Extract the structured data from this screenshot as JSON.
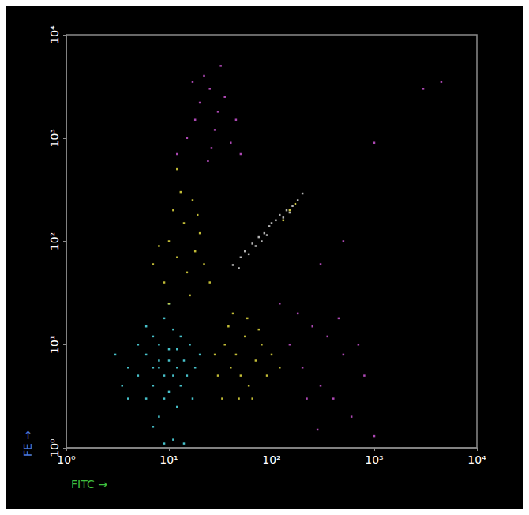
{
  "chart_data": {
    "type": "scatter",
    "x_label": "FITC →",
    "y_label": "FE →",
    "log": true,
    "grid": false,
    "marker": "square",
    "xlim": [
      1,
      10000
    ],
    "ylim": [
      1,
      10000
    ],
    "xticks": [
      {
        "value": 1,
        "label": "10⁰"
      },
      {
        "value": 10,
        "label": "10¹"
      },
      {
        "value": 100,
        "label": "10²"
      },
      {
        "value": 1000,
        "label": "10³"
      },
      {
        "value": 10000,
        "label": "10⁴"
      }
    ],
    "yticks": [
      {
        "value": 1,
        "label": "10⁰"
      },
      {
        "value": 10,
        "label": "10¹"
      },
      {
        "value": 100,
        "label": "10²"
      },
      {
        "value": 1000,
        "label": "10³"
      },
      {
        "value": 10000,
        "label": "10⁴"
      }
    ],
    "series": [
      {
        "color": "#4fd6e0",
        "values": [
          [
            8,
            6
          ],
          [
            9,
            5
          ],
          [
            10,
            7
          ],
          [
            7,
            4
          ],
          [
            11,
            5
          ],
          [
            6,
            8
          ],
          [
            12,
            9
          ],
          [
            9,
            3
          ],
          [
            8,
            10
          ],
          [
            5,
            5
          ],
          [
            13,
            4
          ],
          [
            10,
            3.5
          ],
          [
            7,
            12
          ],
          [
            14,
            7
          ],
          [
            11,
            14
          ],
          [
            4,
            6
          ],
          [
            6,
            3
          ],
          [
            15,
            5
          ],
          [
            9,
            18
          ],
          [
            12,
            2.5
          ],
          [
            5,
            10
          ],
          [
            16,
            10
          ],
          [
            8,
            2
          ],
          [
            3.5,
            4
          ],
          [
            10,
            25
          ],
          [
            18,
            6
          ],
          [
            7,
            1.6
          ],
          [
            6,
            15
          ],
          [
            13,
            12
          ],
          [
            4,
            3
          ],
          [
            20,
            8
          ],
          [
            11,
            1.2
          ],
          [
            9,
            1.1
          ],
          [
            14,
            1.1
          ],
          [
            3,
            8
          ],
          [
            17,
            3
          ],
          [
            8,
            7
          ],
          [
            10,
            9
          ],
          [
            7,
            6
          ],
          [
            12,
            6
          ]
        ]
      },
      {
        "color": "#d6cf3c",
        "values": [
          [
            40,
            6
          ],
          [
            50,
            5
          ],
          [
            45,
            8
          ],
          [
            60,
            4
          ],
          [
            35,
            10
          ],
          [
            55,
            12
          ],
          [
            70,
            7
          ],
          [
            30,
            5
          ],
          [
            48,
            3
          ],
          [
            80,
            10
          ],
          [
            38,
            15
          ],
          [
            65,
            3
          ],
          [
            90,
            5
          ],
          [
            42,
            20
          ],
          [
            28,
            8
          ],
          [
            100,
            8
          ],
          [
            58,
            18
          ],
          [
            75,
            14
          ],
          [
            33,
            3
          ],
          [
            120,
            6
          ],
          [
            12,
            70
          ],
          [
            15,
            50
          ],
          [
            10,
            100
          ],
          [
            14,
            150
          ],
          [
            18,
            80
          ],
          [
            9,
            40
          ],
          [
            20,
            120
          ],
          [
            11,
            200
          ],
          [
            16,
            30
          ],
          [
            13,
            300
          ],
          [
            8,
            90
          ],
          [
            22,
            60
          ],
          [
            17,
            250
          ],
          [
            12,
            500
          ],
          [
            25,
            40
          ],
          [
            10,
            25
          ],
          [
            19,
            180
          ],
          [
            7,
            60
          ]
        ]
      },
      {
        "color": "#c8c8c8",
        "values": [
          [
            42,
            59
          ],
          [
            50,
            70
          ],
          [
            55,
            80
          ],
          [
            65,
            95
          ],
          [
            75,
            110
          ],
          [
            85,
            120
          ],
          [
            95,
            140
          ],
          [
            110,
            160
          ],
          [
            120,
            180
          ],
          [
            140,
            200
          ],
          [
            160,
            220
          ],
          [
            180,
            250
          ],
          [
            200,
            290
          ],
          [
            60,
            75
          ],
          [
            70,
            90
          ],
          [
            90,
            115
          ],
          [
            100,
            150
          ],
          [
            130,
            170
          ],
          [
            150,
            190
          ],
          [
            48,
            55
          ],
          [
            80,
            100
          ]
        ]
      },
      {
        "color": "#e0d84a",
        "values": [
          [
            150,
            200
          ],
          [
            170,
            230
          ],
          [
            130,
            160
          ]
        ]
      },
      {
        "color": "#c050c8",
        "values": [
          [
            20,
            2200
          ],
          [
            25,
            3000
          ],
          [
            18,
            1500
          ],
          [
            30,
            1800
          ],
          [
            15,
            1000
          ],
          [
            22,
            4000
          ],
          [
            35,
            2500
          ],
          [
            28,
            1200
          ],
          [
            40,
            900
          ],
          [
            12,
            700
          ],
          [
            24,
            600
          ],
          [
            45,
            1500
          ],
          [
            17,
            3500
          ],
          [
            32,
            5000
          ],
          [
            50,
            700
          ],
          [
            26,
            800
          ],
          [
            150,
            10
          ],
          [
            200,
            6
          ],
          [
            300,
            4
          ],
          [
            250,
            15
          ],
          [
            400,
            3
          ],
          [
            500,
            8
          ],
          [
            180,
            20
          ],
          [
            600,
            2
          ],
          [
            350,
            12
          ],
          [
            800,
            5
          ],
          [
            1000,
            1.3
          ],
          [
            120,
            25
          ],
          [
            220,
            3
          ],
          [
            450,
            18
          ],
          [
            700,
            10
          ],
          [
            280,
            1.5
          ],
          [
            1000,
            900
          ],
          [
            3000,
            3000
          ],
          [
            4500,
            3500
          ],
          [
            300,
            60
          ],
          [
            500,
            100
          ]
        ]
      }
    ]
  }
}
